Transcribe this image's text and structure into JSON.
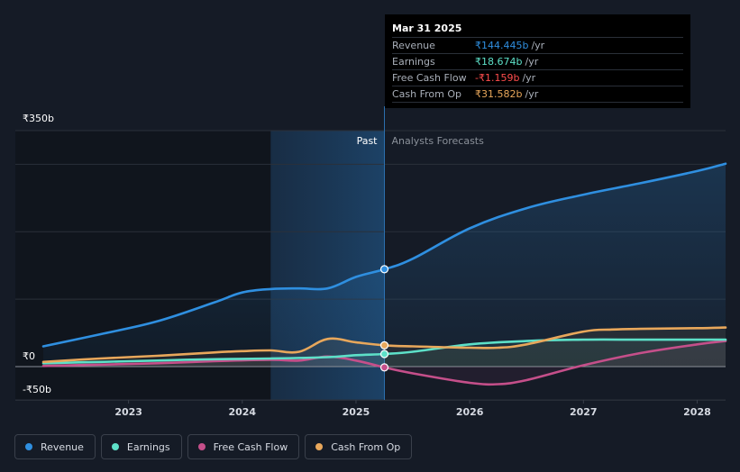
{
  "chart_data": {
    "type": "line",
    "x_unit": "year",
    "xlim": [
      2022.25,
      2028.25
    ],
    "ylim": [
      -50,
      350
    ],
    "y_tick_labels": [
      {
        "value": 350,
        "label": "₹350b"
      },
      {
        "value": 0,
        "label": "₹0"
      },
      {
        "value": -50,
        "label": "-₹50b"
      }
    ],
    "x_ticks": [
      {
        "value": 2023,
        "label": "2023"
      },
      {
        "value": 2024,
        "label": "2024"
      },
      {
        "value": 2025,
        "label": "2025"
      },
      {
        "value": 2026,
        "label": "2026"
      },
      {
        "value": 2027,
        "label": "2027"
      },
      {
        "value": 2028,
        "label": "2028"
      }
    ],
    "shaded_region": {
      "from": 2024.25,
      "to": 2025.25
    },
    "divider": {
      "x": 2025.25,
      "past_label": "Past",
      "forecast_label": "Analysts Forecasts"
    },
    "series": [
      {
        "name": "Revenue",
        "color": "#2f8fe0",
        "area": true,
        "points": [
          [
            2022.25,
            30
          ],
          [
            2022.75,
            48
          ],
          [
            2023.25,
            67
          ],
          [
            2023.75,
            95
          ],
          [
            2024.0,
            110
          ],
          [
            2024.25,
            115
          ],
          [
            2024.5,
            116
          ],
          [
            2024.75,
            116
          ],
          [
            2025.0,
            133
          ],
          [
            2025.25,
            144.4
          ],
          [
            2025.5,
            160
          ],
          [
            2026.0,
            205
          ],
          [
            2026.5,
            235
          ],
          [
            2027.0,
            255
          ],
          [
            2027.5,
            272
          ],
          [
            2028.0,
            290
          ],
          [
            2028.25,
            301
          ]
        ]
      },
      {
        "name": "Earnings",
        "color": "#5de0c8",
        "area": false,
        "points": [
          [
            2022.25,
            5
          ],
          [
            2022.75,
            7
          ],
          [
            2023.25,
            9
          ],
          [
            2023.75,
            11
          ],
          [
            2024.25,
            12
          ],
          [
            2024.75,
            14
          ],
          [
            2025.0,
            17
          ],
          [
            2025.25,
            18.7
          ],
          [
            2025.5,
            22
          ],
          [
            2026.0,
            33
          ],
          [
            2026.5,
            38
          ],
          [
            2027.0,
            40
          ],
          [
            2027.5,
            40
          ],
          [
            2028.0,
            40
          ],
          [
            2028.25,
            40
          ]
        ]
      },
      {
        "name": "Free Cash Flow",
        "color": "#c54f8a",
        "area": false,
        "points": [
          [
            2022.25,
            1
          ],
          [
            2022.75,
            3
          ],
          [
            2023.25,
            5
          ],
          [
            2023.75,
            8
          ],
          [
            2024.25,
            10
          ],
          [
            2024.5,
            9
          ],
          [
            2024.75,
            15
          ],
          [
            2025.0,
            9
          ],
          [
            2025.25,
            -1.2
          ],
          [
            2025.5,
            -10
          ],
          [
            2026.0,
            -24
          ],
          [
            2026.25,
            -26
          ],
          [
            2026.5,
            -20
          ],
          [
            2027.0,
            2
          ],
          [
            2027.5,
            20
          ],
          [
            2028.0,
            33
          ],
          [
            2028.25,
            38
          ]
        ]
      },
      {
        "name": "Cash From Op",
        "color": "#e8a75b",
        "area": false,
        "points": [
          [
            2022.25,
            7
          ],
          [
            2022.75,
            12
          ],
          [
            2023.25,
            16
          ],
          [
            2023.75,
            21
          ],
          [
            2024.0,
            23
          ],
          [
            2024.25,
            24
          ],
          [
            2024.5,
            22
          ],
          [
            2024.75,
            41
          ],
          [
            2025.0,
            36
          ],
          [
            2025.25,
            31.6
          ],
          [
            2025.5,
            30
          ],
          [
            2026.0,
            28
          ],
          [
            2026.25,
            28
          ],
          [
            2026.5,
            33
          ],
          [
            2027.0,
            52
          ],
          [
            2027.25,
            55
          ],
          [
            2027.5,
            56
          ],
          [
            2028.0,
            57
          ],
          [
            2028.25,
            58
          ]
        ]
      }
    ]
  },
  "tooltip": {
    "date": "Mar 31 2025",
    "rows": [
      {
        "label": "Revenue",
        "value": "₹144.445b",
        "unit": "/yr",
        "color": "#2f8fe0"
      },
      {
        "label": "Earnings",
        "value": "₹18.674b",
        "unit": "/yr",
        "color": "#5de0c8"
      },
      {
        "label": "Free Cash Flow",
        "value": "-₹1.159b",
        "unit": "/yr",
        "color": "#ff4d4d"
      },
      {
        "label": "Cash From Op",
        "value": "₹31.582b",
        "unit": "/yr",
        "color": "#e8a75b"
      }
    ]
  },
  "legend": [
    {
      "label": "Revenue",
      "color": "#2f8fe0"
    },
    {
      "label": "Earnings",
      "color": "#5de0c8"
    },
    {
      "label": "Free Cash Flow",
      "color": "#c54f8a"
    },
    {
      "label": "Cash From Op",
      "color": "#e8a75b"
    }
  ]
}
